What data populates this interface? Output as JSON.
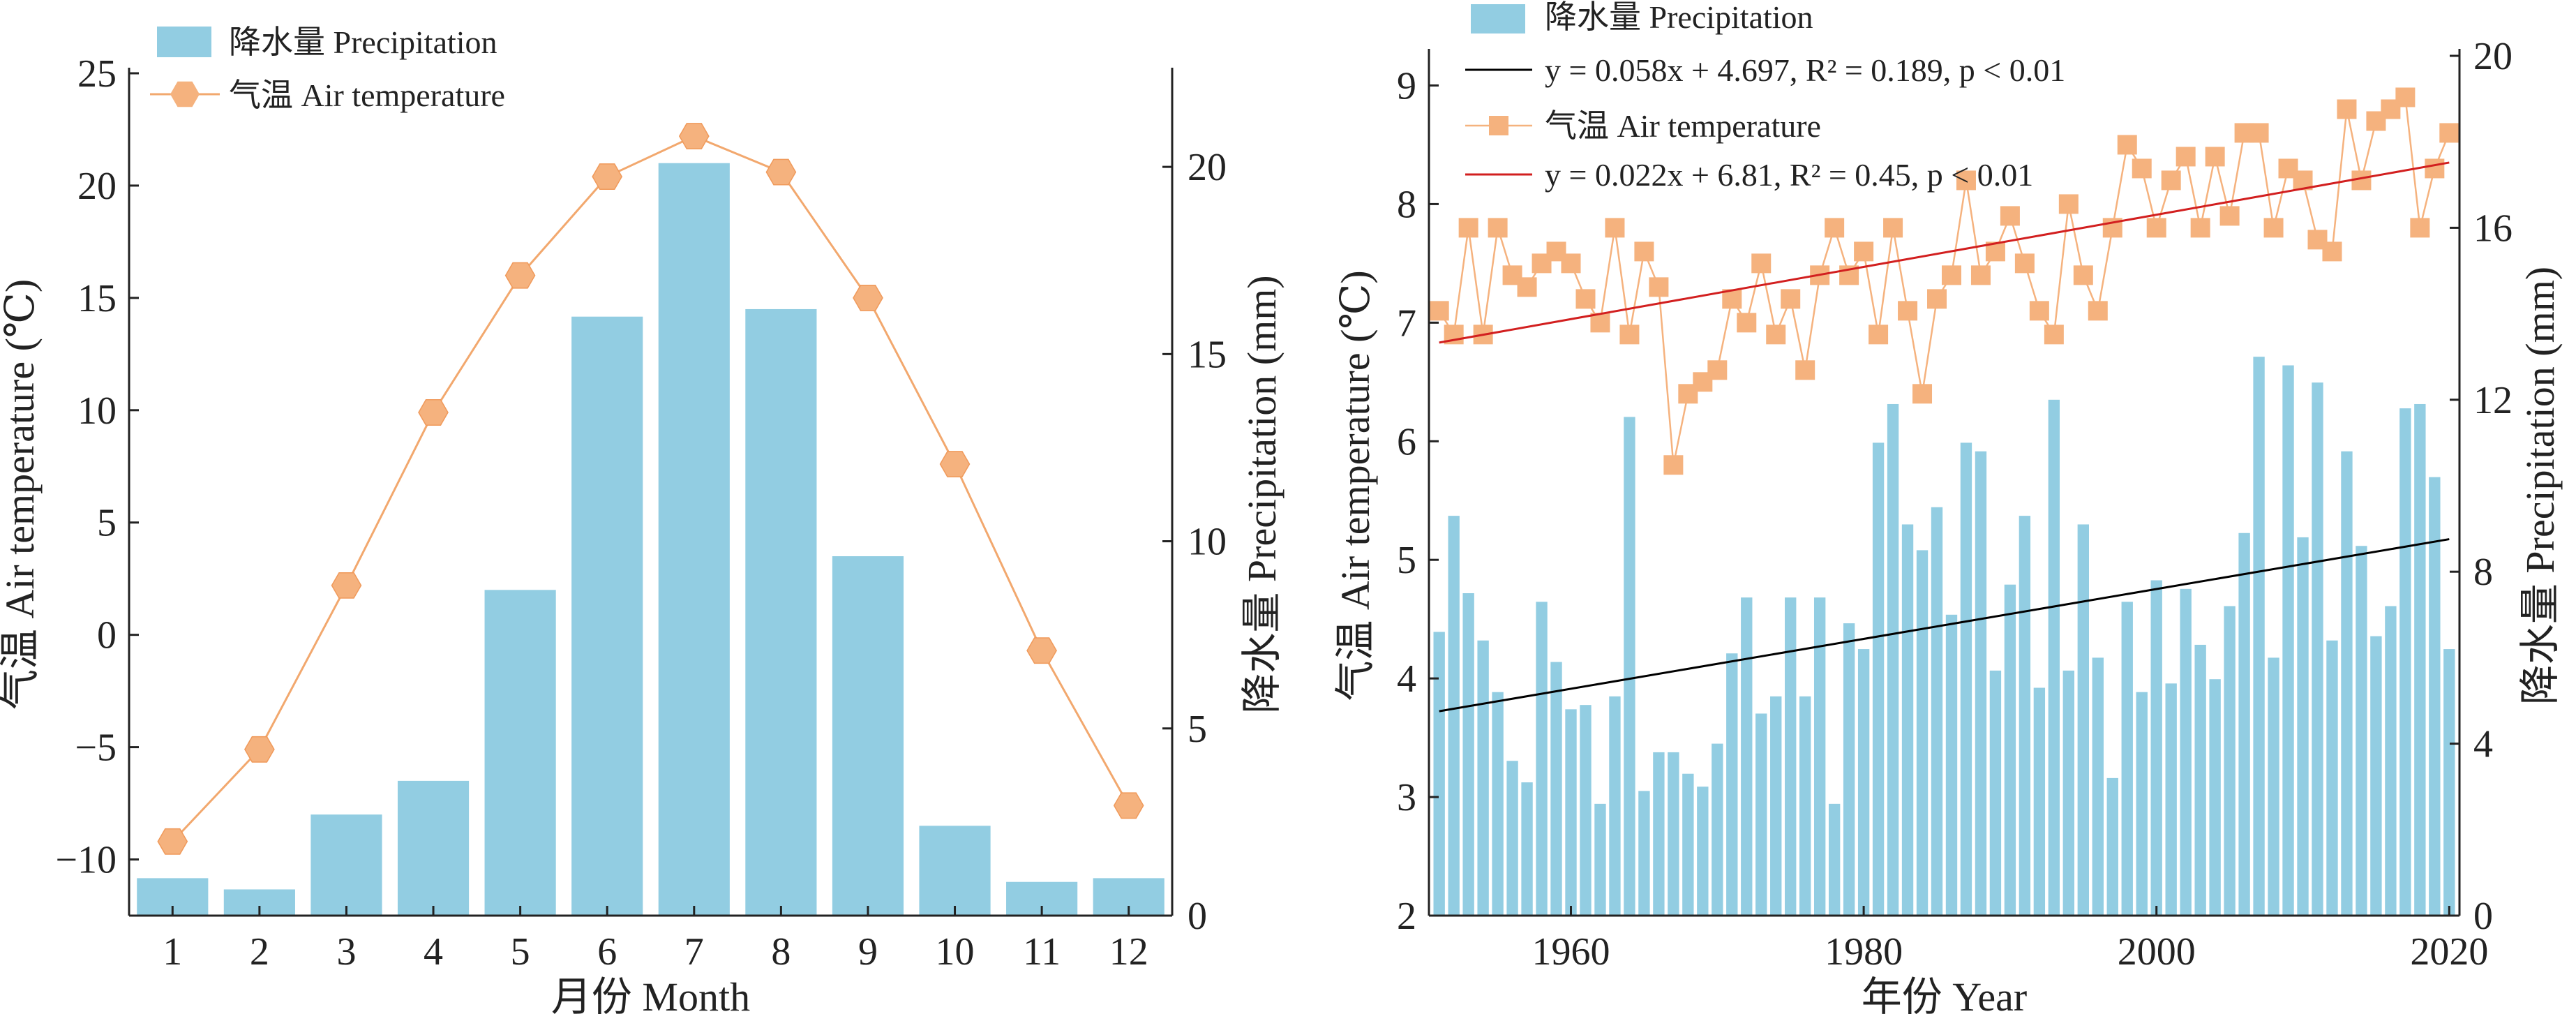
{
  "colors": {
    "bar": "#92CDE2",
    "temperature": "#F5B27E",
    "temperature_marker": "#F5B27E",
    "temp_line_left": "#F2A86E",
    "fit_precip": "#000000",
    "fit_temp": "#D21F1F",
    "axis": "#222222"
  },
  "chart_data": [
    {
      "type": "bar",
      "xlabel": "月份 Month",
      "ylabel_left": "气温 Air temperature (℃)",
      "ylabel_right": "降水量 Precipitation (mm)",
      "categories": [
        "1",
        "2",
        "3",
        "4",
        "5",
        "6",
        "7",
        "8",
        "9",
        "10",
        "11",
        "12"
      ],
      "x_ticks": [
        "1",
        "2",
        "3",
        "4",
        "5",
        "6",
        "7",
        "8",
        "9",
        "10",
        "11",
        "12"
      ],
      "ylim_left": [
        -12.5,
        25
      ],
      "yticks_left": [
        -10,
        -5,
        0,
        5,
        10,
        15,
        20,
        25
      ],
      "ytick_labels_left": [
        "−10",
        "−5",
        "0",
        "5",
        "10",
        "15",
        "20",
        "25"
      ],
      "ylim_right": [
        0,
        22.5
      ],
      "yticks_right": [
        0,
        5,
        10,
        15,
        20
      ],
      "ytick_labels_right": [
        "0",
        "5",
        "10",
        "15",
        "20"
      ],
      "legend": {
        "position": "top-left",
        "entries": [
          "降水量 Precipitation",
          "气温 Air temperature"
        ]
      },
      "series": [
        {
          "name": "降水量 Precipitation",
          "type": "bar",
          "axis": "right",
          "values": [
            1.0,
            0.7,
            2.7,
            3.6,
            8.7,
            16.0,
            20.1,
            16.2,
            9.6,
            2.4,
            0.9,
            1.0
          ]
        },
        {
          "name": "气温 Air temperature",
          "type": "line",
          "axis": "left",
          "marker": "hexagon",
          "values": [
            -9.2,
            -5.1,
            2.2,
            9.9,
            16.0,
            20.4,
            22.2,
            20.6,
            15.0,
            7.6,
            -0.7,
            -7.6
          ]
        }
      ]
    },
    {
      "type": "bar",
      "xlabel": "年份 Year",
      "ylabel_left": "气温 Air temperature (℃)",
      "ylabel_right": "降水量 Precipitation (mm)",
      "xlim": [
        1950.3,
        2020.7
      ],
      "x_ticks": [
        1960,
        1980,
        2000,
        2020
      ],
      "ylim_left": [
        2,
        9.25
      ],
      "yticks_left": [
        2,
        3,
        4,
        5,
        6,
        7,
        8,
        9
      ],
      "ylim_right": [
        0,
        20
      ],
      "yticks_right": [
        0,
        4,
        8,
        12,
        16,
        20
      ],
      "legend": {
        "position": "top-left",
        "entries": [
          "降水量 Precipitation",
          "y = 0.058x + 4.697, R² = 0.189, p < 0.01",
          "气温 Air temperature",
          "y = 0.022x + 6.81, R² = 0.45, p < 0.01"
        ]
      },
      "years": [
        1951,
        1952,
        1953,
        1954,
        1955,
        1956,
        1957,
        1958,
        1959,
        1960,
        1961,
        1962,
        1963,
        1964,
        1965,
        1966,
        1967,
        1968,
        1969,
        1970,
        1971,
        1972,
        1973,
        1974,
        1975,
        1976,
        1977,
        1978,
        1979,
        1980,
        1981,
        1982,
        1983,
        1984,
        1985,
        1986,
        1987,
        1988,
        1989,
        1990,
        1991,
        1992,
        1993,
        1994,
        1995,
        1996,
        1997,
        1998,
        1999,
        2000,
        2001,
        2002,
        2003,
        2004,
        2005,
        2006,
        2007,
        2008,
        2009,
        2010,
        2011,
        2012,
        2013,
        2014,
        2015,
        2016,
        2017,
        2018,
        2019,
        2020
      ],
      "series": [
        {
          "name": "降水量 Precipitation",
          "type": "bar",
          "axis": "right",
          "values": [
            6.6,
            9.3,
            7.5,
            6.4,
            5.2,
            3.6,
            3.1,
            7.3,
            5.9,
            4.8,
            4.9,
            2.6,
            5.1,
            11.6,
            2.9,
            3.8,
            3.8,
            3.3,
            3.0,
            4.0,
            6.1,
            7.4,
            4.7,
            5.1,
            7.4,
            5.1,
            7.4,
            2.6,
            6.8,
            6.2,
            11.0,
            11.9,
            9.1,
            8.5,
            9.5,
            7.0,
            11.0,
            10.8,
            5.7,
            7.7,
            9.3,
            5.3,
            12.0,
            5.7,
            9.1,
            6.0,
            3.2,
            7.3,
            5.2,
            7.8,
            5.4,
            7.6,
            6.3,
            5.5,
            7.2,
            8.9,
            13.0,
            6.0,
            12.8,
            8.8,
            12.4,
            6.4,
            10.8,
            8.6,
            6.5,
            7.2,
            11.8,
            11.9,
            10.2,
            6.2
          ]
        },
        {
          "name": "气温 Air temperature",
          "type": "line",
          "axis": "left",
          "marker": "square",
          "values": [
            7.1,
            6.9,
            7.8,
            6.9,
            7.8,
            7.4,
            7.3,
            7.5,
            7.6,
            7.5,
            7.2,
            7.0,
            7.8,
            6.9,
            7.6,
            7.3,
            5.8,
            6.4,
            6.5,
            6.6,
            7.2,
            7.0,
            7.5,
            6.9,
            7.2,
            6.6,
            7.4,
            7.8,
            7.4,
            7.6,
            6.9,
            7.8,
            7.1,
            6.4,
            7.2,
            7.4,
            8.2,
            7.4,
            7.6,
            7.9,
            7.5,
            7.1,
            6.9,
            8.0,
            7.4,
            7.1,
            7.8,
            8.5,
            8.3,
            7.8,
            8.2,
            8.4,
            7.8,
            8.4,
            7.9,
            8.6,
            8.6,
            7.8,
            8.3,
            8.2,
            7.7,
            7.6,
            8.8,
            8.2,
            8.7,
            8.8,
            8.9,
            7.8,
            8.3,
            8.6
          ]
        }
      ],
      "trend_lines": [
        {
          "label": "y = 0.058x + 4.697, R² = 0.189, p < 0.01",
          "axis": "right",
          "slope": 0.058,
          "intercept": 4.697
        },
        {
          "label": "y = 0.022x + 6.81, R² = 0.45, p < 0.01",
          "axis": "left",
          "slope": 0.022,
          "intercept": 6.81
        }
      ]
    }
  ]
}
